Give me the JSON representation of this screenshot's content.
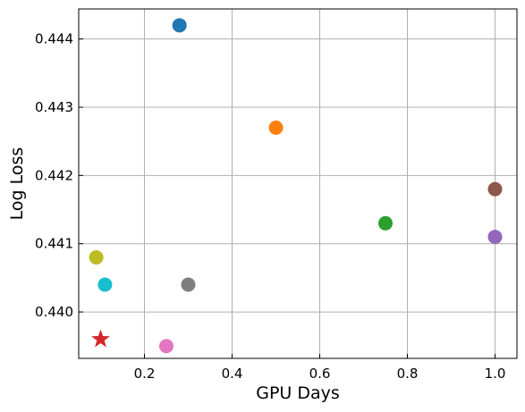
{
  "chart_data": {
    "type": "scatter",
    "title": "",
    "xlabel": "GPU Days",
    "ylabel": "Log Loss",
    "xlim": [
      0.05,
      1.05
    ],
    "ylim": [
      0.43932,
      0.44444
    ],
    "xticks": [
      0.2,
      0.4,
      0.6,
      0.8,
      1.0
    ],
    "xtick_labels": [
      "0.2",
      "0.4",
      "0.6",
      "0.8",
      "1.0"
    ],
    "yticks": [
      0.44,
      0.441,
      0.442,
      0.443,
      0.444
    ],
    "ytick_labels": [
      "0.440",
      "0.441",
      "0.442",
      "0.443",
      "0.444"
    ],
    "grid": true,
    "points": [
      {
        "x": 0.28,
        "y": 0.4442,
        "color": "#1f77b4",
        "marker": "circle"
      },
      {
        "x": 0.5,
        "y": 0.4427,
        "color": "#ff7f0e",
        "marker": "circle"
      },
      {
        "x": 0.75,
        "y": 0.4413,
        "color": "#2ca02c",
        "marker": "circle"
      },
      {
        "x": 0.1,
        "y": 0.4396,
        "color": "#d62728",
        "marker": "star"
      },
      {
        "x": 1.0,
        "y": 0.4411,
        "color": "#9467bd",
        "marker": "circle"
      },
      {
        "x": 1.0,
        "y": 0.4418,
        "color": "#8c564b",
        "marker": "circle"
      },
      {
        "x": 0.25,
        "y": 0.4395,
        "color": "#e377c2",
        "marker": "circle"
      },
      {
        "x": 0.3,
        "y": 0.4404,
        "color": "#7f7f7f",
        "marker": "circle"
      },
      {
        "x": 0.09,
        "y": 0.4408,
        "color": "#bcbd22",
        "marker": "circle"
      },
      {
        "x": 0.11,
        "y": 0.4404,
        "color": "#17becf",
        "marker": "circle"
      }
    ]
  }
}
